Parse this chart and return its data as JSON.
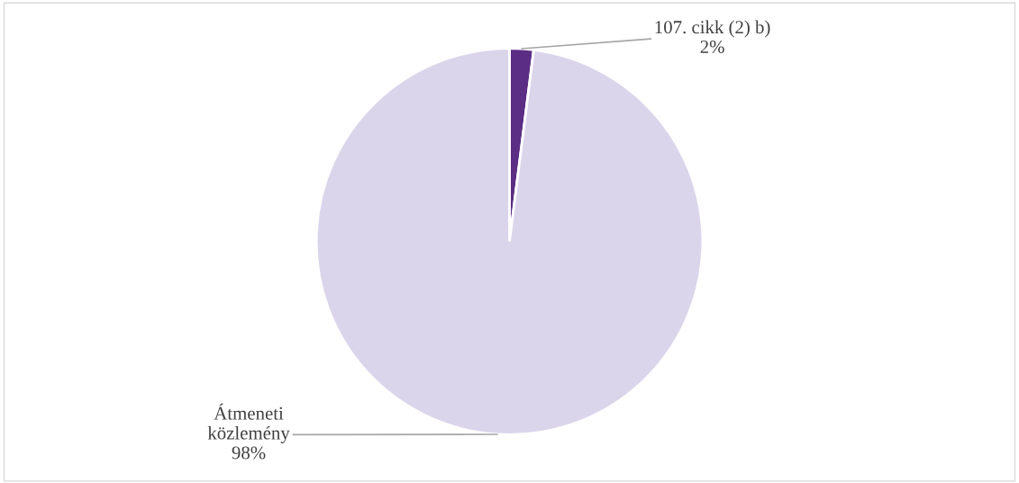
{
  "chart_data": {
    "type": "pie",
    "categories": [
      "107. cikk (2) b)",
      "Átmeneti közlemény"
    ],
    "values": [
      2,
      98
    ],
    "value_labels": [
      "2%",
      "98%"
    ],
    "colors": [
      "#5c2d84",
      "#dbd5eb"
    ],
    "legend": false
  }
}
